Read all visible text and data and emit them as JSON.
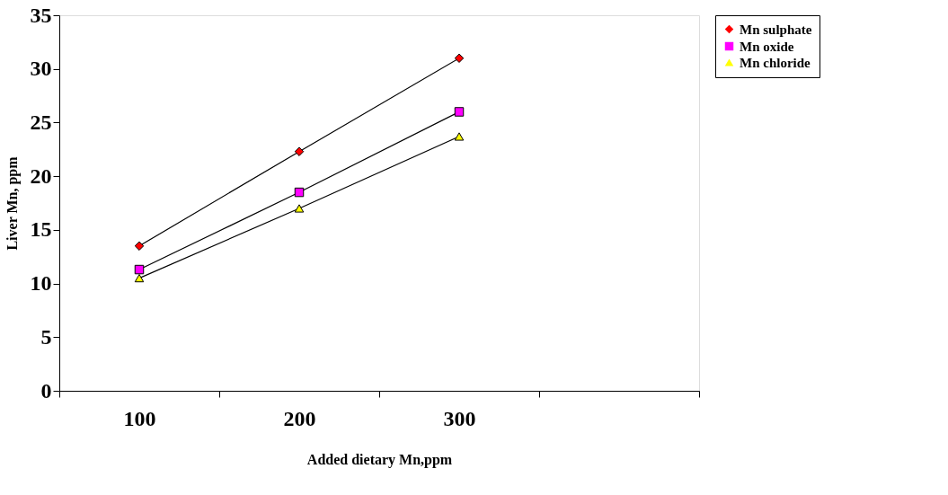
{
  "chart_data": {
    "type": "line",
    "xlabel": "Added dietary Mn,ppm",
    "ylabel": "Liver Mn, ppm",
    "categories": [
      "100",
      "200",
      "300",
      null
    ],
    "ylim": [
      0,
      35
    ],
    "yticks": [
      0,
      5,
      10,
      15,
      20,
      25,
      30,
      35
    ],
    "grid": false,
    "legend": "right",
    "line_style": "solid",
    "series": [
      {
        "name": "Mn sulphate",
        "color": "#ff0000",
        "marker": "diamond",
        "values": [
          13.5,
          22.3,
          31.0,
          null
        ]
      },
      {
        "name": "Mn oxide",
        "color": "#ff00ff",
        "marker": "square",
        "values": [
          11.3,
          18.5,
          26.0,
          null
        ]
      },
      {
        "name": "Mn chloride",
        "color": "#ffff00",
        "marker": "triangle",
        "values": [
          10.5,
          17.0,
          23.7,
          null
        ]
      }
    ]
  }
}
